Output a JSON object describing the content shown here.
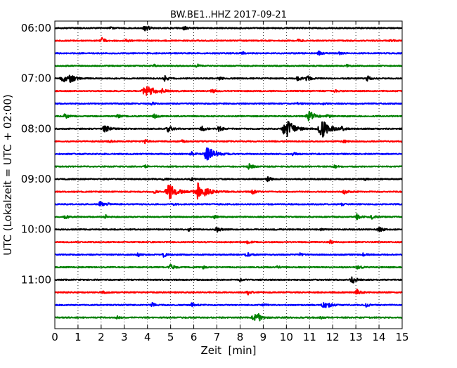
{
  "chart_data": {
    "type": "line",
    "title": "BW.BE1..HHZ 2017-09-21",
    "xlabel": "Zeit  [min]",
    "ylabel": "UTC (Lokalzeit = UTC + 02:00)",
    "xlim": [
      0,
      15
    ],
    "x_ticks": [
      0,
      1,
      2,
      3,
      4,
      5,
      6,
      7,
      8,
      9,
      10,
      11,
      12,
      13,
      14,
      15
    ],
    "y_tick_labels": [
      "06:00",
      "07:00",
      "08:00",
      "09:00",
      "10:00",
      "11:00"
    ],
    "trace_interval_min": 15,
    "grid": "vertical dotted lines",
    "color_cycle": [
      "#000000",
      "#ff0000",
      "#0000ff",
      "#008000"
    ],
    "traces": [
      {
        "start": "06:00",
        "events": [
          [
            3.9,
            0.6
          ],
          [
            5.6,
            0.35
          ],
          [
            2.4,
            0.2
          ]
        ]
      },
      {
        "start": "06:15",
        "events": [
          [
            2.05,
            0.45
          ],
          [
            3.1,
            0.25
          ],
          [
            10.5,
            0.25
          ],
          [
            14.5,
            0.25
          ]
        ]
      },
      {
        "start": "06:30",
        "events": [
          [
            8.1,
            0.25
          ],
          [
            11.4,
            0.35
          ],
          [
            12.3,
            0.2
          ]
        ]
      },
      {
        "start": "06:45",
        "events": [
          [
            6.15,
            0.3
          ],
          [
            4.3,
            0.2
          ],
          [
            12.6,
            0.2
          ]
        ]
      },
      {
        "start": "07:00",
        "events": [
          [
            0.35,
            0.7
          ],
          [
            0.7,
            0.65
          ],
          [
            4.75,
            0.45
          ],
          [
            7.1,
            0.35
          ],
          [
            10.5,
            0.4
          ],
          [
            10.9,
            0.45
          ],
          [
            13.5,
            0.45
          ]
        ]
      },
      {
        "start": "07:15",
        "events": [
          [
            3.95,
            1.3
          ],
          [
            4.6,
            0.4
          ],
          [
            6.8,
            0.35
          ],
          [
            12.1,
            0.25
          ]
        ]
      },
      {
        "start": "07:30",
        "events": [
          [
            4.2,
            0.3
          ],
          [
            10.5,
            0.25
          ],
          [
            11.6,
            0.2
          ]
        ]
      },
      {
        "start": "07:45",
        "events": [
          [
            0.45,
            0.45
          ],
          [
            2.7,
            0.3
          ],
          [
            4.3,
            0.35
          ],
          [
            11.0,
            0.9
          ],
          [
            11.8,
            0.35
          ]
        ]
      },
      {
        "start": "08:00",
        "events": [
          [
            2.15,
            0.7
          ],
          [
            4.9,
            0.55
          ],
          [
            6.35,
            0.45
          ],
          [
            7.1,
            0.5
          ],
          [
            9.9,
            0.75
          ],
          [
            10.1,
            1.2
          ],
          [
            11.55,
            1.45
          ],
          [
            12.4,
            0.3
          ]
        ]
      },
      {
        "start": "08:15",
        "events": [
          [
            2.35,
            0.3
          ],
          [
            3.9,
            0.3
          ],
          [
            5.5,
            0.25
          ],
          [
            12.5,
            0.3
          ],
          [
            15.0,
            0.25
          ]
        ]
      },
      {
        "start": "08:30",
        "events": [
          [
            6.6,
            1.3
          ],
          [
            5.9,
            0.35
          ],
          [
            10.3,
            0.3
          ]
        ]
      },
      {
        "start": "08:45",
        "events": [
          [
            8.4,
            0.5
          ],
          [
            3.9,
            0.2
          ],
          [
            12.1,
            0.25
          ]
        ]
      },
      {
        "start": "09:00",
        "events": [
          [
            9.2,
            0.4
          ],
          [
            4.7,
            0.25
          ],
          [
            5.9,
            0.25
          ],
          [
            13.4,
            0.2
          ]
        ]
      },
      {
        "start": "09:15",
        "events": [
          [
            4.95,
            1.35
          ],
          [
            6.2,
            1.6
          ],
          [
            8.55,
            0.4
          ],
          [
            12.5,
            0.35
          ],
          [
            4.3,
            0.25
          ]
        ]
      },
      {
        "start": "09:30",
        "events": [
          [
            1.95,
            0.45
          ],
          [
            2.3,
            0.25
          ],
          [
            5.1,
            0.25
          ],
          [
            12.4,
            0.2
          ]
        ]
      },
      {
        "start": "09:45",
        "events": [
          [
            0.45,
            0.35
          ],
          [
            2.2,
            0.3
          ],
          [
            6.9,
            0.25
          ],
          [
            13.05,
            0.45
          ],
          [
            13.7,
            0.4
          ]
        ]
      },
      {
        "start": "10:00",
        "events": [
          [
            7.0,
            0.45
          ],
          [
            14.0,
            0.5
          ],
          [
            5.8,
            0.25
          ],
          [
            11.5,
            0.2
          ]
        ]
      },
      {
        "start": "10:15",
        "events": [
          [
            8.35,
            0.35
          ],
          [
            11.9,
            0.25
          ]
        ]
      },
      {
        "start": "10:30",
        "events": [
          [
            3.6,
            0.3
          ],
          [
            4.7,
            0.45
          ],
          [
            8.3,
            0.45
          ],
          [
            10.6,
            0.25
          ],
          [
            13.3,
            0.25
          ]
        ]
      },
      {
        "start": "10:45",
        "events": [
          [
            5.0,
            0.55
          ],
          [
            6.4,
            0.25
          ],
          [
            9.6,
            0.25
          ],
          [
            13.1,
            0.35
          ]
        ]
      },
      {
        "start": "11:00",
        "events": [
          [
            12.85,
            0.6
          ],
          [
            8.0,
            0.2
          ]
        ]
      },
      {
        "start": "11:15",
        "events": [
          [
            8.35,
            0.4
          ],
          [
            13.05,
            0.5
          ],
          [
            2.1,
            0.2
          ]
        ]
      },
      {
        "start": "11:30",
        "events": [
          [
            4.2,
            0.35
          ],
          [
            5.9,
            0.4
          ],
          [
            11.65,
            0.8
          ],
          [
            13.4,
            0.4
          ],
          [
            9.0,
            0.2
          ]
        ]
      },
      {
        "start": "11:45",
        "events": [
          [
            8.6,
            0.6
          ],
          [
            8.8,
            0.5
          ],
          [
            2.7,
            0.2
          ],
          [
            11.5,
            0.2
          ]
        ]
      }
    ]
  }
}
